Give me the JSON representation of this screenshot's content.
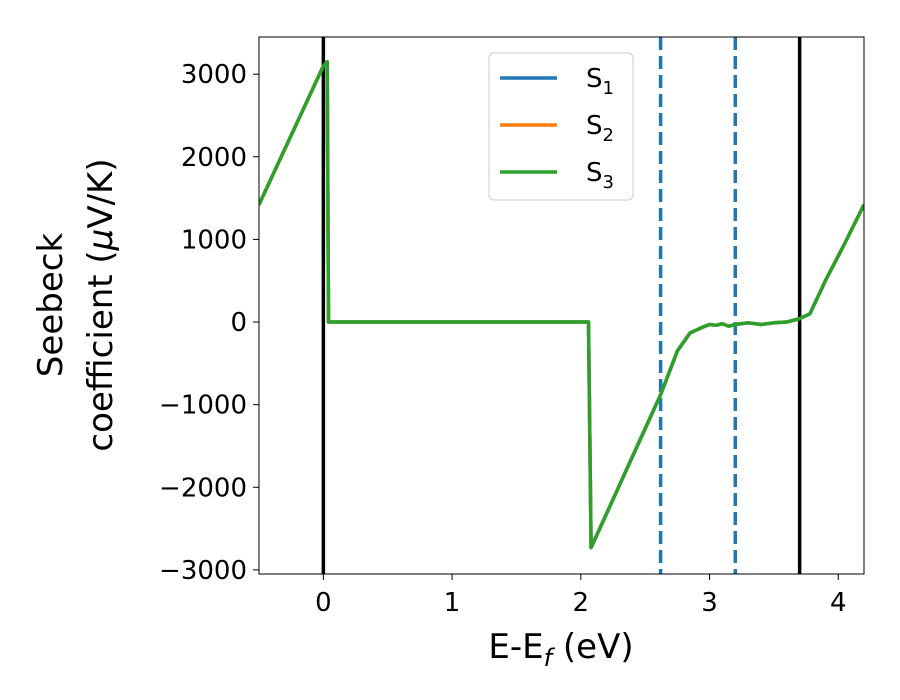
{
  "chart_data": {
    "type": "line",
    "xlabel": {
      "main": "E-E",
      "sub": "f",
      "unit": " (eV)"
    },
    "ylabel": {
      "line1": "Seebeck",
      "line2_prefix": "coefficient  (",
      "mu": "μ",
      "line2_suffix": "V/K)"
    },
    "xlim": [
      -0.5,
      4.2
    ],
    "ylim": [
      -3050,
      3450
    ],
    "xticks": [
      0,
      1,
      2,
      3,
      4
    ],
    "xtick_labels": [
      "0",
      "1",
      "2",
      "3",
      "4"
    ],
    "yticks": [
      -3000,
      -2000,
      -1000,
      0,
      1000,
      2000,
      3000
    ],
    "ytick_labels": [
      "−3000",
      "−2000",
      "−1000",
      "0",
      "1000",
      "2000",
      "3000"
    ],
    "vlines": [
      {
        "x": 0.0,
        "style": "solid",
        "color": "#000000"
      },
      {
        "x": 3.7,
        "style": "solid",
        "color": "#000000"
      },
      {
        "x": 2.62,
        "style": "dashed",
        "color": "#1f77b4"
      },
      {
        "x": 3.2,
        "style": "dashed",
        "color": "#1f77b4"
      }
    ],
    "legend_position": "top-center",
    "series": [
      {
        "name": "S",
        "sub": "1",
        "color": "#1f77b4",
        "x": [
          -0.5,
          0.0,
          0.03,
          0.04,
          2.05,
          2.06,
          2.08,
          2.62,
          2.75,
          2.85,
          2.95,
          3.0,
          3.05,
          3.1,
          3.15,
          3.2,
          3.3,
          3.4,
          3.5,
          3.6,
          3.7,
          3.78,
          3.9,
          4.05,
          4.2
        ],
        "y": [
          1420,
          3100,
          3150,
          0,
          0,
          0,
          -2730,
          -880,
          -350,
          -130,
          -60,
          -30,
          -40,
          -20,
          -50,
          -30,
          -10,
          -30,
          -10,
          0,
          40,
          100,
          500,
          950,
          1420
        ]
      },
      {
        "name": "S",
        "sub": "2",
        "color": "#ff7f0e",
        "x": [
          -0.5,
          0.0,
          0.03,
          0.04,
          2.05,
          2.06,
          2.08,
          2.62,
          2.75,
          2.85,
          2.95,
          3.0,
          3.05,
          3.1,
          3.15,
          3.2,
          3.3,
          3.4,
          3.5,
          3.6,
          3.7,
          3.78,
          3.9,
          4.05,
          4.2
        ],
        "y": [
          1420,
          3100,
          3150,
          0,
          0,
          0,
          -2730,
          -880,
          -350,
          -130,
          -60,
          -30,
          -40,
          -20,
          -50,
          -30,
          -10,
          -30,
          -10,
          0,
          40,
          100,
          500,
          950,
          1420
        ]
      },
      {
        "name": "S",
        "sub": "3",
        "color": "#2ca02c",
        "x": [
          -0.5,
          0.0,
          0.03,
          0.04,
          2.05,
          2.06,
          2.08,
          2.62,
          2.75,
          2.85,
          2.95,
          3.0,
          3.05,
          3.1,
          3.15,
          3.2,
          3.3,
          3.4,
          3.5,
          3.6,
          3.7,
          3.78,
          3.9,
          4.05,
          4.2
        ],
        "y": [
          1420,
          3100,
          3150,
          0,
          0,
          0,
          -2730,
          -880,
          -350,
          -130,
          -60,
          -30,
          -40,
          -20,
          -50,
          -30,
          -10,
          -30,
          -10,
          0,
          40,
          100,
          500,
          950,
          1420
        ]
      }
    ]
  }
}
